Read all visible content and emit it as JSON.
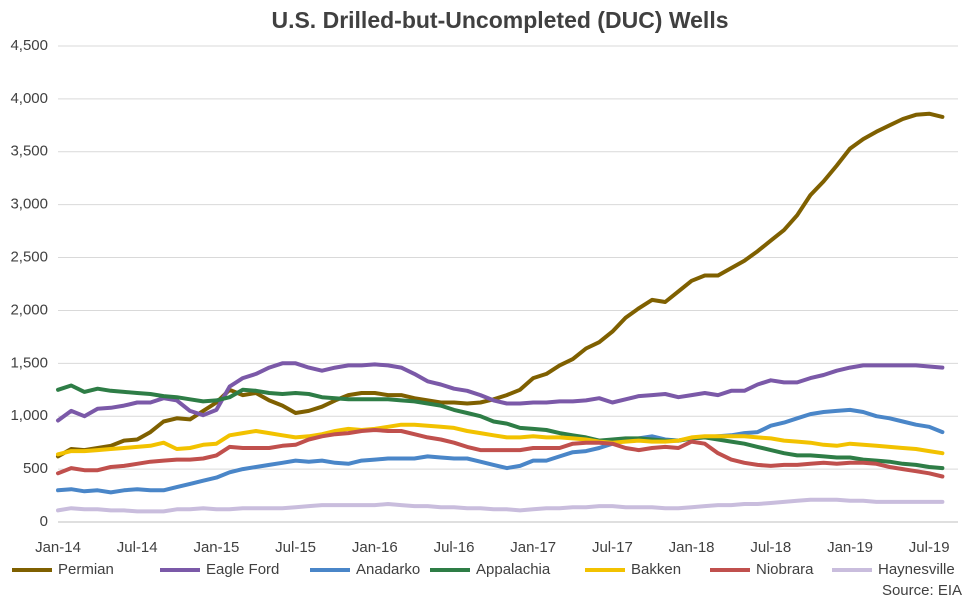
{
  "chart_data": {
    "type": "line",
    "title": "U.S. Drilled-but-Uncompleted (DUC) Wells",
    "source": "Source: EIA",
    "categories": [
      "Jan-14",
      null,
      null,
      null,
      null,
      null,
      "Jul-14",
      null,
      null,
      null,
      null,
      null,
      "Jan-15",
      null,
      null,
      null,
      null,
      null,
      "Jul-15",
      null,
      null,
      null,
      null,
      null,
      "Jan-16",
      null,
      null,
      null,
      null,
      null,
      "Jul-16",
      null,
      null,
      null,
      null,
      null,
      "Jan-17",
      null,
      null,
      null,
      null,
      null,
      "Jul-17",
      null,
      null,
      null,
      null,
      null,
      "Jan-18",
      null,
      null,
      null,
      null,
      null,
      "Jul-18",
      null,
      null,
      null,
      null,
      null,
      "Jan-19",
      null,
      null,
      null,
      null,
      null,
      "Jul-19",
      null
    ],
    "ylim": [
      0,
      4500
    ],
    "yticks": [
      0,
      500,
      {
        "value": 1000,
        "label": "1,000"
      },
      {
        "value": 1500,
        "label": "1,500"
      },
      {
        "value": 2000,
        "label": "2,000"
      },
      {
        "value": 2500,
        "label": "2,500"
      },
      {
        "value": 3000,
        "label": "3,000"
      },
      {
        "value": 3500,
        "label": "3,500"
      },
      {
        "value": 4000,
        "label": "4,000"
      },
      {
        "value": 4500,
        "label": "4,500"
      }
    ],
    "grid": true,
    "legend": "bottom",
    "series": [
      {
        "name": "Permian",
        "color": "#7f6000",
        "values": [
          620,
          690,
          680,
          700,
          720,
          770,
          780,
          850,
          950,
          980,
          970,
          1050,
          1130,
          1250,
          1200,
          1220,
          1150,
          1100,
          1030,
          1050,
          1090,
          1150,
          1200,
          1220,
          1220,
          1200,
          1200,
          1170,
          1150,
          1130,
          1130,
          1120,
          1130,
          1160,
          1200,
          1250,
          1360,
          1400,
          1480,
          1540,
          1640,
          1700,
          1800,
          1930,
          2020,
          2100,
          2080,
          2180,
          2280,
          2330,
          2330,
          2400,
          2470,
          2560,
          2660,
          2760,
          2900,
          3090,
          3220,
          3370,
          3530,
          3620,
          3690,
          3750,
          3810,
          3850,
          3860,
          3830
        ]
      },
      {
        "name": "Eagle Ford",
        "color": "#7b59a8",
        "values": [
          960,
          1050,
          1000,
          1070,
          1080,
          1100,
          1130,
          1130,
          1170,
          1150,
          1050,
          1010,
          1060,
          1280,
          1360,
          1400,
          1460,
          1500,
          1500,
          1460,
          1430,
          1460,
          1480,
          1480,
          1490,
          1480,
          1460,
          1400,
          1330,
          1300,
          1260,
          1240,
          1200,
          1150,
          1120,
          1120,
          1130,
          1130,
          1140,
          1140,
          1150,
          1170,
          1130,
          1160,
          1190,
          1200,
          1210,
          1180,
          1200,
          1220,
          1200,
          1240,
          1240,
          1300,
          1340,
          1320,
          1320,
          1360,
          1390,
          1430,
          1460,
          1480,
          1480,
          1480,
          1480,
          1480,
          1470,
          1460
        ]
      },
      {
        "name": "Anadarko",
        "color": "#4a86c8",
        "values": [
          300,
          310,
          290,
          300,
          280,
          300,
          310,
          300,
          300,
          330,
          360,
          390,
          420,
          470,
          500,
          520,
          540,
          560,
          580,
          570,
          580,
          560,
          550,
          580,
          590,
          600,
          600,
          600,
          620,
          610,
          600,
          600,
          570,
          540,
          510,
          530,
          580,
          580,
          620,
          660,
          670,
          700,
          740,
          780,
          790,
          810,
          780,
          770,
          790,
          800,
          810,
          820,
          840,
          850,
          910,
          940,
          980,
          1020,
          1040,
          1050,
          1060,
          1040,
          1000,
          980,
          950,
          920,
          900,
          850
        ]
      },
      {
        "name": "Appalachia",
        "color": "#2e7d46",
        "values": [
          1250,
          1290,
          1230,
          1260,
          1240,
          1230,
          1220,
          1210,
          1190,
          1180,
          1160,
          1140,
          1150,
          1180,
          1250,
          1240,
          1220,
          1210,
          1220,
          1210,
          1180,
          1170,
          1160,
          1160,
          1160,
          1160,
          1150,
          1140,
          1120,
          1100,
          1060,
          1030,
          1000,
          950,
          930,
          890,
          880,
          870,
          840,
          820,
          800,
          770,
          780,
          790,
          790,
          780,
          770,
          770,
          790,
          800,
          780,
          760,
          740,
          710,
          680,
          650,
          630,
          630,
          620,
          610,
          610,
          590,
          580,
          570,
          550,
          540,
          520,
          510
        ]
      },
      {
        "name": "Bakken",
        "color": "#f2c200",
        "values": [
          640,
          670,
          670,
          680,
          690,
          700,
          710,
          720,
          750,
          690,
          700,
          730,
          740,
          820,
          840,
          860,
          840,
          820,
          800,
          810,
          830,
          860,
          880,
          870,
          880,
          900,
          920,
          920,
          910,
          900,
          890,
          860,
          840,
          820,
          800,
          800,
          810,
          800,
          800,
          790,
          780,
          760,
          750,
          760,
          770,
          760,
          760,
          770,
          800,
          810,
          810,
          810,
          810,
          800,
          790,
          770,
          760,
          750,
          730,
          720,
          740,
          730,
          720,
          710,
          700,
          690,
          670,
          650
        ]
      },
      {
        "name": "Niobrara",
        "color": "#c0504d",
        "values": [
          460,
          510,
          490,
          490,
          520,
          530,
          550,
          570,
          580,
          590,
          590,
          600,
          630,
          710,
          700,
          700,
          700,
          720,
          730,
          780,
          810,
          830,
          840,
          860,
          870,
          860,
          860,
          830,
          800,
          780,
          750,
          710,
          680,
          680,
          680,
          680,
          700,
          700,
          700,
          740,
          750,
          750,
          740,
          700,
          680,
          700,
          710,
          700,
          760,
          740,
          650,
          590,
          560,
          540,
          530,
          540,
          540,
          550,
          560,
          550,
          560,
          560,
          550,
          520,
          500,
          480,
          460,
          430
        ]
      },
      {
        "name": "Haynesville",
        "color": "#c9bddd",
        "values": [
          110,
          130,
          120,
          120,
          110,
          110,
          100,
          100,
          100,
          120,
          120,
          130,
          120,
          120,
          130,
          130,
          130,
          130,
          140,
          150,
          160,
          160,
          160,
          160,
          160,
          170,
          160,
          150,
          150,
          140,
          140,
          130,
          130,
          120,
          120,
          110,
          120,
          130,
          130,
          140,
          140,
          150,
          150,
          140,
          140,
          140,
          130,
          130,
          140,
          150,
          160,
          160,
          170,
          170,
          180,
          190,
          200,
          210,
          210,
          210,
          200,
          200,
          190,
          190,
          190,
          190,
          190,
          190
        ]
      }
    ]
  }
}
